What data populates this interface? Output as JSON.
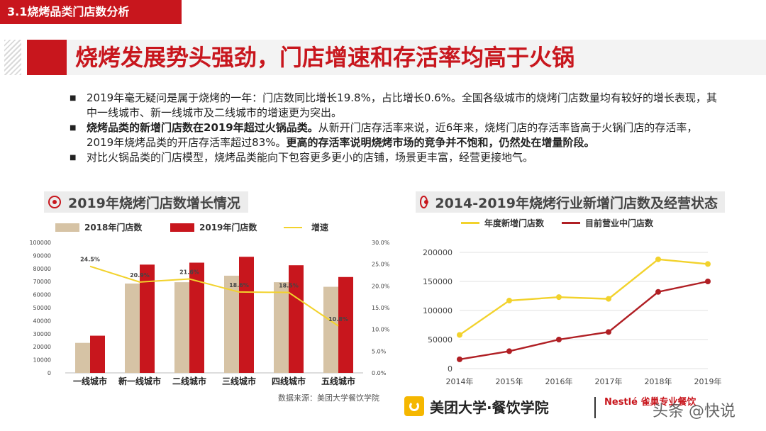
{
  "section_label": "3.1烧烤品类门店数分析",
  "headline": "烧烤发展势头强劲，门店增速和存活率均高于火锅",
  "bullets": [
    {
      "parts": [
        {
          "text": "2019年毫无疑问是属于烧烤的一年：门店数同比增长19.8%，占比增长0.6%。全国各级城市的烧烤门店数量均有较好的增长表现，其中一线城市、新一线城市及二线城市的增速更为突出。",
          "bold": false
        }
      ]
    },
    {
      "parts": [
        {
          "text": "烧烤品类的新增门店数在2019年超过火锅品类。",
          "bold": true
        },
        {
          "text": "从新开门店存活率来说，近6年来，烧烤门店的存活率皆高于火锅门店的存活率，2019年烧烤品类的开店存活率超过83%。",
          "bold": false
        },
        {
          "text": "更高的存活率说明烧烤市场的竞争并不饱和，仍然处在增量阶段。",
          "bold": true
        }
      ]
    },
    {
      "parts": [
        {
          "text": "对比火锅品类的门店模型，烧烤品类能向下包容更多更小的店铺，场景更丰富，经营更接地气。",
          "bold": false
        }
      ]
    }
  ],
  "left_heading": "2019年烧烤门店数增长情况",
  "right_heading": "2014-2019年烧烤行业新增门店数及经营状态",
  "source_note": "数据来源：美团大学餐饮学院",
  "footer_brand": "美团大学·餐饮学院",
  "partner_logo": "Nestlé 雀巢专业餐饮",
  "watermark": "头条 @快说",
  "colors": {
    "accent": "#c8161d",
    "tan": "#d6c3a5",
    "yellow": "#f2d22c",
    "darkred": "#b01f24"
  },
  "chart_data": [
    {
      "type": "bar",
      "categories": [
        "一线城市",
        "新一线城市",
        "二线城市",
        "三线城市",
        "四线城市",
        "五线城市"
      ],
      "series": [
        {
          "name": "2018年门店数",
          "type": "bar",
          "color": "#d6c3a5",
          "values": [
            23000,
            68500,
            69500,
            74500,
            69500,
            66000
          ]
        },
        {
          "name": "2019年门店数",
          "type": "bar",
          "color": "#c8161d",
          "values": [
            28500,
            83000,
            84500,
            89000,
            82500,
            73500
          ]
        },
        {
          "name": "增速",
          "type": "line",
          "axis": "right",
          "color": "#f2d22c",
          "values": [
            24.5,
            20.9,
            21.6,
            18.6,
            18.5,
            10.8
          ],
          "labels": [
            "24.5%",
            "20.9%",
            "21.6%",
            "18.6%",
            "18.5%",
            "10.8%"
          ]
        }
      ],
      "ylim": [
        0,
        100000
      ],
      "yticks": [
        "0",
        "10000",
        "20000",
        "30000",
        "40000",
        "50000",
        "60000",
        "70000",
        "80000",
        "90000",
        "100000"
      ],
      "y2lim": [
        0,
        30
      ],
      "y2ticks": [
        "0.0%",
        "5.0%",
        "10.0%",
        "15.0%",
        "20.0%",
        "25.0%",
        "30.0%"
      ],
      "legend": "top"
    },
    {
      "type": "line",
      "categories": [
        "2014年",
        "2015年",
        "2016年",
        "2017年",
        "2018年",
        "2019年"
      ],
      "series": [
        {
          "name": "年度新增门店数",
          "color": "#f2d22c",
          "values": [
            58000,
            117000,
            123000,
            120000,
            188000,
            180000
          ]
        },
        {
          "name": "目前营业中门店数",
          "color": "#b01f24",
          "values": [
            16000,
            30000,
            50000,
            63000,
            132000,
            150000
          ]
        }
      ],
      "ylim": [
        0,
        200000
      ],
      "yticks": [
        "0",
        "50000",
        "100000",
        "150000",
        "200000"
      ],
      "legend": "top",
      "grid": true
    }
  ]
}
